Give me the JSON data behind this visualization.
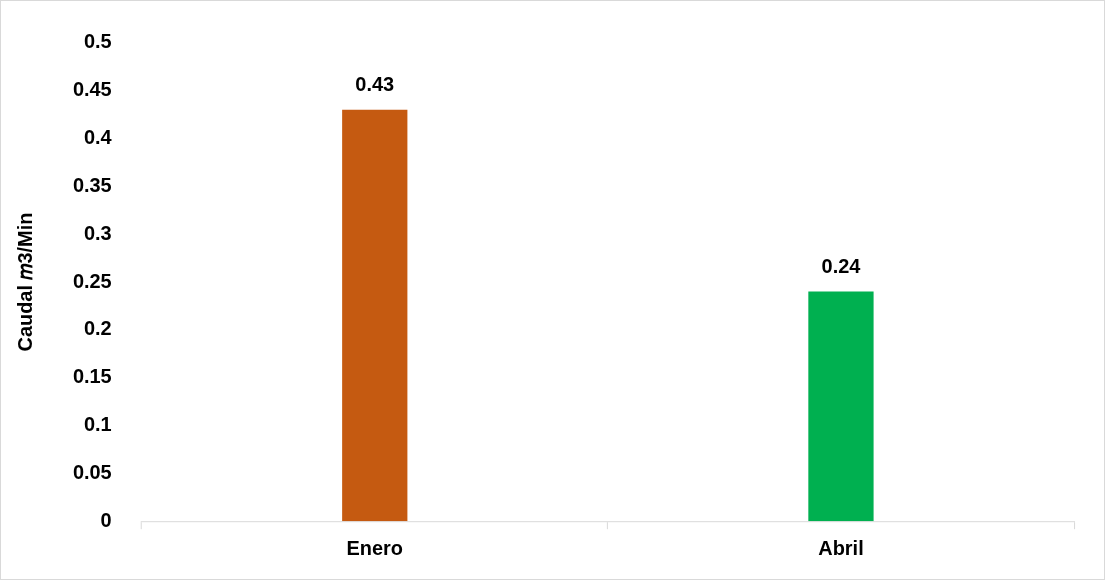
{
  "chart_data": {
    "type": "bar",
    "ylabel": "Caudal 𝑚3/Min",
    "categories": [
      "Enero",
      "Abril"
    ],
    "values": [
      0.43,
      0.24
    ],
    "colors": [
      "#c55a11",
      "#00b050"
    ],
    "ylim": [
      0,
      0.5
    ],
    "yticks": [
      0,
      0.05,
      0.1,
      0.15,
      0.2,
      0.25,
      0.3,
      0.35,
      0.4,
      0.45,
      0.5
    ],
    "data_labels": true
  }
}
